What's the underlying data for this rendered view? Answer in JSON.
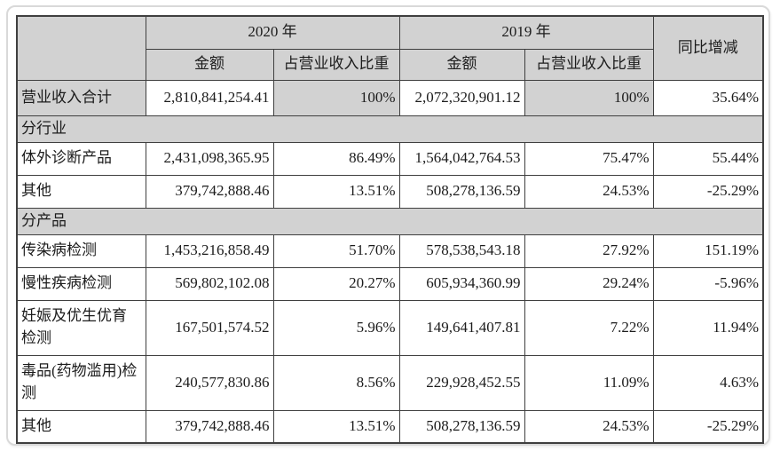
{
  "colors": {
    "header_bg": "#d2d2d2",
    "table_border": "#3f3f3f",
    "card_border": "#d9d9d9",
    "text": "#1c1c1c"
  },
  "table": {
    "header": {
      "year_2020": "2020 年",
      "year_2019": "2019 年",
      "yoy": "同比增减",
      "amount_2020": "金额",
      "proportion_2020": "占营业收入比重",
      "amount_2019": "金额",
      "proportion_2019": "占营业收入比重"
    },
    "rows": [
      {
        "label": "营业收入合计",
        "amount_2020": "2,810,841,254.41",
        "proportion_2020": "100%",
        "amount_2019": "2,072,320,901.12",
        "proportion_2019": "100%",
        "yoy": "35.64%"
      },
      {
        "label": "分行业",
        "section": true
      },
      {
        "label": "体外诊断产品",
        "amount_2020": "2,431,098,365.95",
        "proportion_2020": "86.49%",
        "amount_2019": "1,564,042,764.53",
        "proportion_2019": "75.47%",
        "yoy": "55.44%"
      },
      {
        "label": "其他",
        "amount_2020": "379,742,888.46",
        "proportion_2020": "13.51%",
        "amount_2019": "508,278,136.59",
        "proportion_2019": "24.53%",
        "yoy": "-25.29%"
      },
      {
        "label": "分产品",
        "section": true
      },
      {
        "label": "传染病检测",
        "amount_2020": "1,453,216,858.49",
        "proportion_2020": "51.70%",
        "amount_2019": "578,538,543.18",
        "proportion_2019": "27.92%",
        "yoy": "151.19%"
      },
      {
        "label": "慢性疾病检测",
        "amount_2020": "569,802,102.08",
        "proportion_2020": "20.27%",
        "amount_2019": "605,934,360.99",
        "proportion_2019": "29.24%",
        "yoy": "-5.96%"
      },
      {
        "label": "妊娠及优生优育检测",
        "amount_2020": "167,501,574.52",
        "proportion_2020": "5.96%",
        "amount_2019": "149,641,407.81",
        "proportion_2019": "7.22%",
        "yoy": "11.94%"
      },
      {
        "label": "毒品(药物滥用)检测",
        "amount_2020": "240,577,830.86",
        "proportion_2020": "8.56%",
        "amount_2019": "229,928,452.55",
        "proportion_2019": "11.09%",
        "yoy": "4.63%"
      },
      {
        "label": "其他",
        "amount_2020": "379,742,888.46",
        "proportion_2020": "13.51%",
        "amount_2019": "508,278,136.59",
        "proportion_2019": "24.53%",
        "yoy": "-25.29%"
      }
    ]
  }
}
